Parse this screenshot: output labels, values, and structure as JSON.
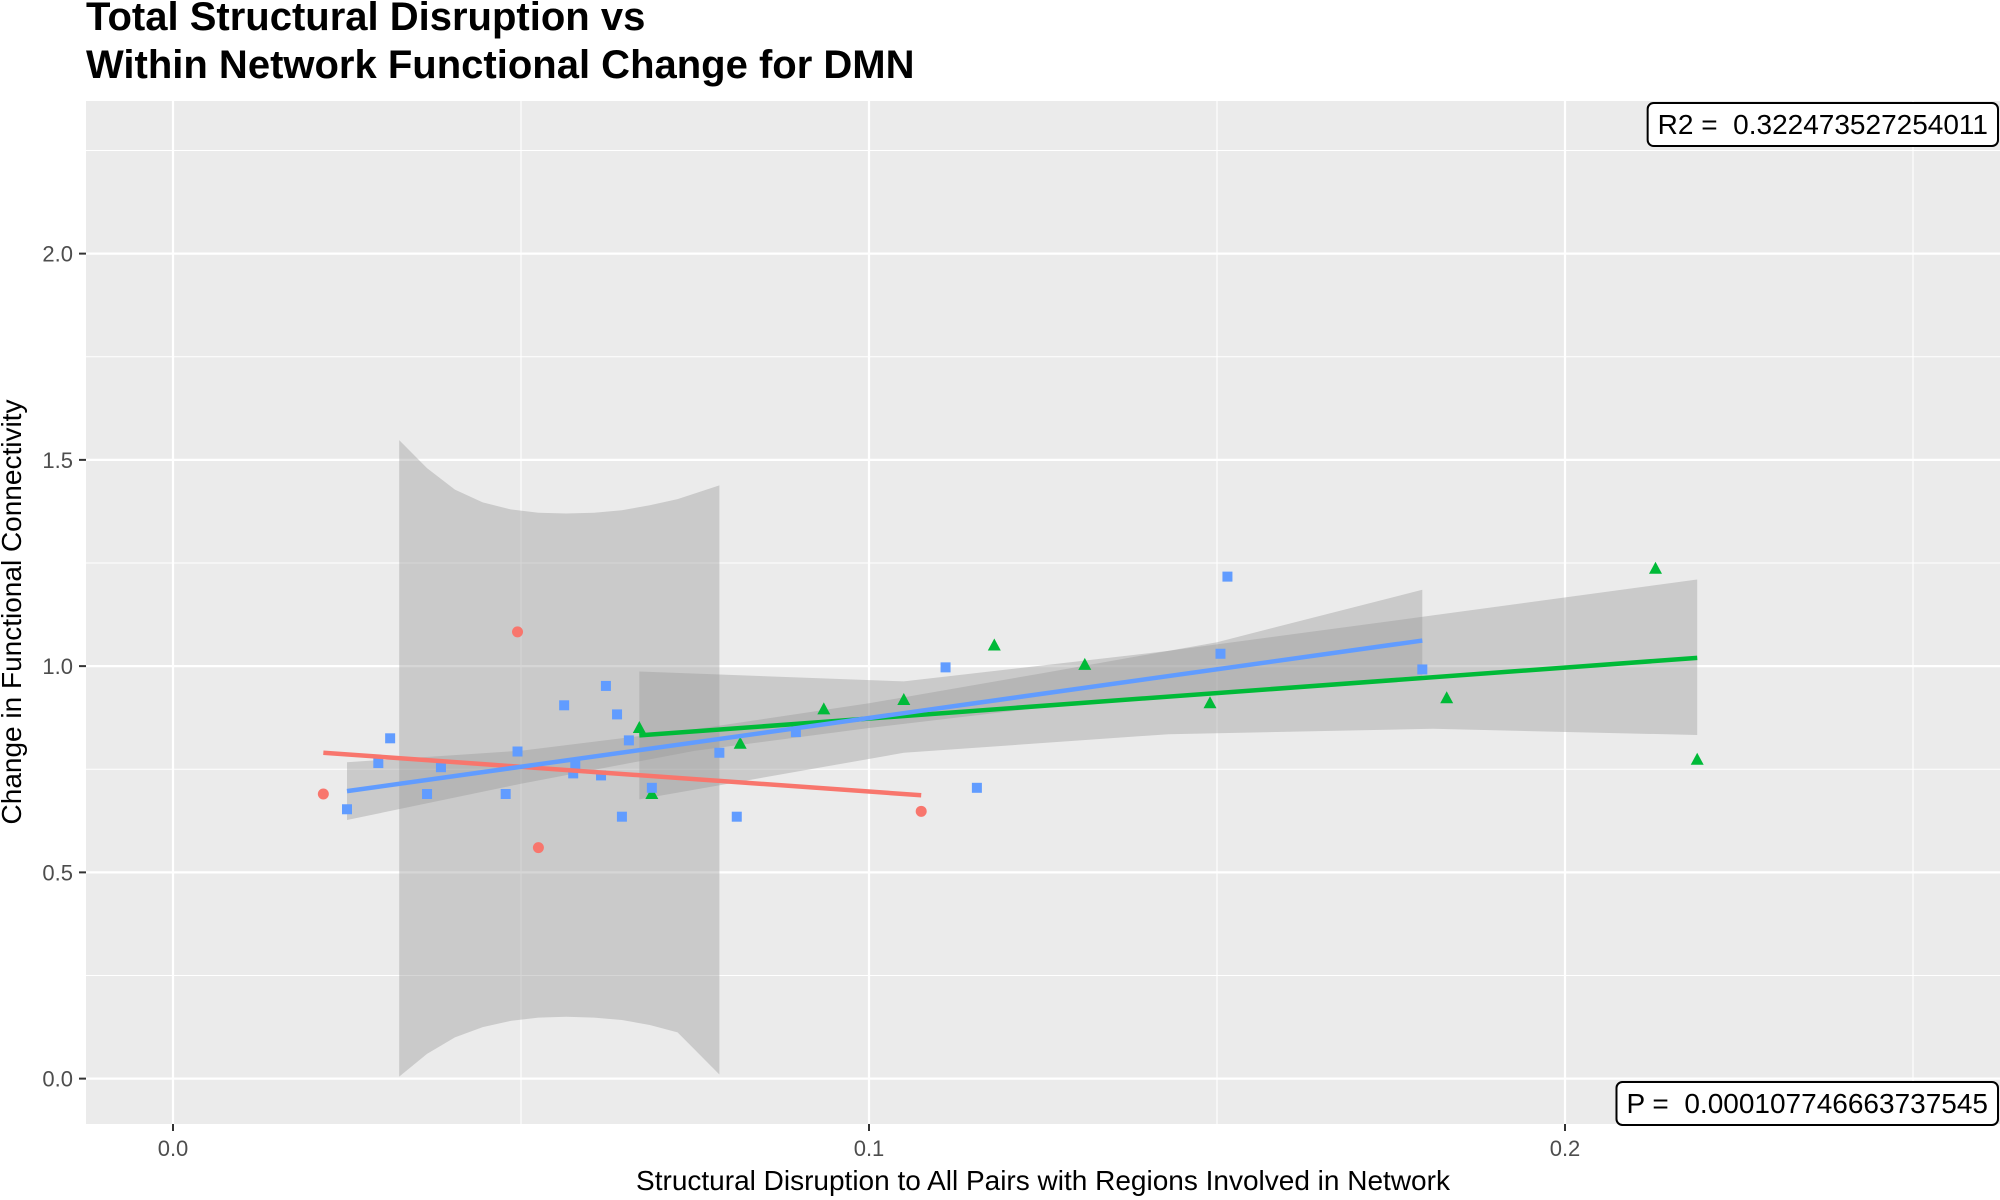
{
  "chart_data": {
    "type": "scatter",
    "title_lines": [
      "Total Structural Disruption vs",
      "Within Network Functional Change for DMN"
    ],
    "xlabel": "Structural Disruption to All Pairs with Regions Involved in Network",
    "ylabel": "Change in Functional Connectivity",
    "xlim": [
      -0.0125,
      0.2625
    ],
    "ylim": [
      -0.11,
      2.37
    ],
    "x_ticks": [
      0.0,
      0.1,
      0.2
    ],
    "x_tick_labels": [
      "0.0",
      "0.1",
      "0.2"
    ],
    "y_ticks": [
      0.0,
      0.5,
      1.0,
      1.5,
      2.0
    ],
    "y_tick_labels": [
      "0.0",
      "0.5",
      "1.0",
      "1.5",
      "2.0"
    ],
    "grid": true,
    "legend": "none",
    "annotations": [
      {
        "label": "R2",
        "value": "0.322473527254011",
        "text": "R2 =  0.322473527254011",
        "position": "top-right"
      },
      {
        "label": "P",
        "value": "0.000107746663737545",
        "text": "P =  0.000107746663737545",
        "position": "bottom-right"
      }
    ],
    "series": [
      {
        "color": "#F8766D",
        "shape": "circle",
        "points": [
          [
            0.0216,
            0.69
          ],
          [
            0.0495,
            1.083
          ],
          [
            0.0525,
            0.56
          ],
          [
            0.1075,
            0.648
          ]
        ],
        "fit": {
          "x": [
            0.0216,
            0.1075
          ],
          "y": [
            0.79,
            0.687
          ]
        },
        "ribbon": {
          "x": [
            0.0325,
            0.0365,
            0.0405,
            0.0445,
            0.0485,
            0.0525,
            0.0565,
            0.0605,
            0.0645,
            0.0685,
            0.0725,
            0.0785
          ],
          "ymin": [
            0.005,
            0.06,
            0.1,
            0.125,
            0.14,
            0.148,
            0.15,
            0.148,
            0.142,
            0.13,
            0.112,
            0.01
          ],
          "ymax": [
            1.548,
            1.48,
            1.428,
            1.397,
            1.38,
            1.372,
            1.37,
            1.372,
            1.378,
            1.39,
            1.405,
            1.438
          ]
        }
      },
      {
        "color": "#00BA38",
        "shape": "triangle",
        "points": [
          [
            0.067,
            0.85
          ],
          [
            0.0688,
            0.69
          ],
          [
            0.0815,
            0.812
          ],
          [
            0.0935,
            0.895
          ],
          [
            0.105,
            0.918
          ],
          [
            0.118,
            1.05
          ],
          [
            0.131,
            1.003
          ],
          [
            0.149,
            0.91
          ],
          [
            0.183,
            0.922
          ],
          [
            0.213,
            1.236
          ],
          [
            0.219,
            0.773
          ]
        ],
        "fit": {
          "x": [
            0.067,
            0.219
          ],
          "y": [
            0.832,
            1.02
          ]
        },
        "ribbon": {
          "x": [
            0.067,
            0.105,
            0.143,
            0.181,
            0.219
          ],
          "ymin": [
            0.677,
            0.79,
            0.835,
            0.848,
            0.833
          ],
          "ymax": [
            0.987,
            0.963,
            1.037,
            1.123,
            1.21
          ]
        }
      },
      {
        "color": "#619CFF",
        "shape": "square",
        "points": [
          [
            0.025,
            0.653
          ],
          [
            0.0295,
            0.765
          ],
          [
            0.0312,
            0.825
          ],
          [
            0.0365,
            0.69
          ],
          [
            0.0385,
            0.755
          ],
          [
            0.0478,
            0.69
          ],
          [
            0.0495,
            0.793
          ],
          [
            0.0562,
            0.905
          ],
          [
            0.0575,
            0.74
          ],
          [
            0.0578,
            0.76
          ],
          [
            0.0615,
            0.735
          ],
          [
            0.0622,
            0.952
          ],
          [
            0.0638,
            0.883
          ],
          [
            0.0645,
            0.635
          ],
          [
            0.0655,
            0.82
          ],
          [
            0.0688,
            0.705
          ],
          [
            0.0785,
            0.79
          ],
          [
            0.081,
            0.635
          ],
          [
            0.0895,
            0.84
          ],
          [
            0.111,
            0.997
          ],
          [
            0.1155,
            0.705
          ],
          [
            0.1505,
            1.03
          ],
          [
            0.1515,
            1.217
          ],
          [
            0.1795,
            0.992
          ]
        ],
        "fit": {
          "x": [
            0.025,
            0.1795
          ],
          "y": [
            0.697,
            1.062
          ]
        },
        "ribbon": {
          "x": [
            0.025,
            0.05,
            0.075,
            0.1,
            0.125,
            0.15,
            0.1795
          ],
          "ymin": [
            0.627,
            0.715,
            0.795,
            0.85,
            0.9,
            0.938,
            0.977
          ],
          "ymax": [
            0.767,
            0.795,
            0.847,
            0.91,
            0.983,
            1.058,
            1.185
          ]
        }
      }
    ]
  }
}
